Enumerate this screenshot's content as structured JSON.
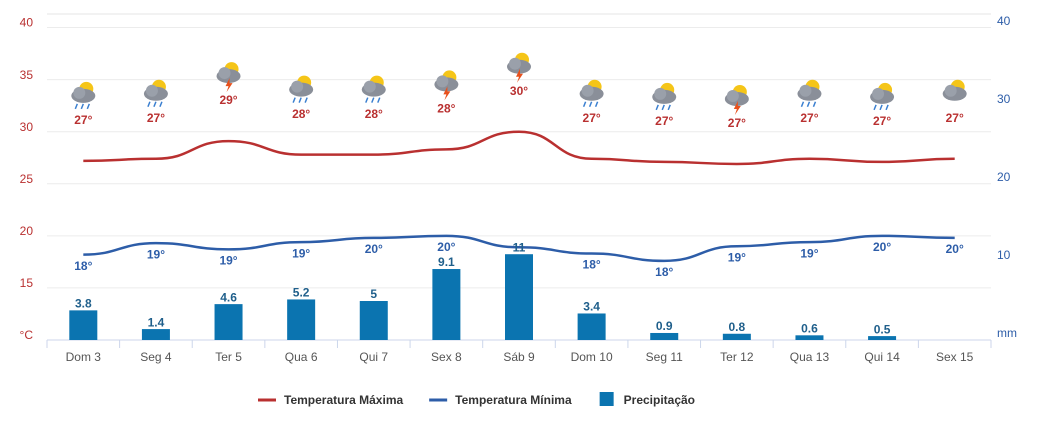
{
  "chart_data": {
    "type": "combo",
    "categories": [
      "Dom 3",
      "Seg 4",
      "Ter 5",
      "Qua 6",
      "Qui 7",
      "Sex 8",
      "Sáb 9",
      "Dom 10",
      "Seg 11",
      "Ter 12",
      "Qua 13",
      "Qui 14",
      "Sex 15"
    ],
    "series": [
      {
        "name": "Temperatura Máxima",
        "color": "#b93030",
        "type": "line",
        "values": [
          27.2,
          27.4,
          29.1,
          27.8,
          27.8,
          28.3,
          30,
          27.4,
          27.1,
          26.9,
          27.4,
          27.1,
          27.4
        ],
        "value_labels": [
          "27°",
          "27°",
          "29°",
          "28°",
          "28°",
          "28°",
          "30°",
          "27°",
          "27°",
          "27°",
          "27°",
          "27°",
          "27°"
        ]
      },
      {
        "name": "Temperatura Mínima",
        "color": "#2d5da8",
        "type": "line",
        "values": [
          18.2,
          19.3,
          18.7,
          19.4,
          19.8,
          20.0,
          18.9,
          18.3,
          17.6,
          19.0,
          19.4,
          20.0,
          19.8
        ],
        "value_labels": [
          "18°",
          "19°",
          "19°",
          "19°",
          "20°",
          "20°",
          null,
          "18°",
          "18°",
          "19°",
          "19°",
          "20°",
          "20°"
        ]
      },
      {
        "name": "Precipitação",
        "color": "#0b74b0",
        "type": "bar",
        "axis": "y2",
        "values": [
          3.8,
          1.4,
          4.6,
          5.2,
          5,
          9.1,
          11,
          3.4,
          0.9,
          0.8,
          0.6,
          0.5,
          null
        ]
      }
    ],
    "ylim": [
      10,
      41.3
    ],
    "yticks": [
      {
        "value": 10,
        "label": "°C"
      },
      15,
      20,
      25,
      30,
      35,
      40
    ],
    "y2lim": [
      0,
      41.8
    ],
    "y2ticks": [
      {
        "value": 0,
        "label": "mm"
      },
      10,
      20,
      30,
      40
    ],
    "grid": true,
    "legend": "bottom"
  }
}
